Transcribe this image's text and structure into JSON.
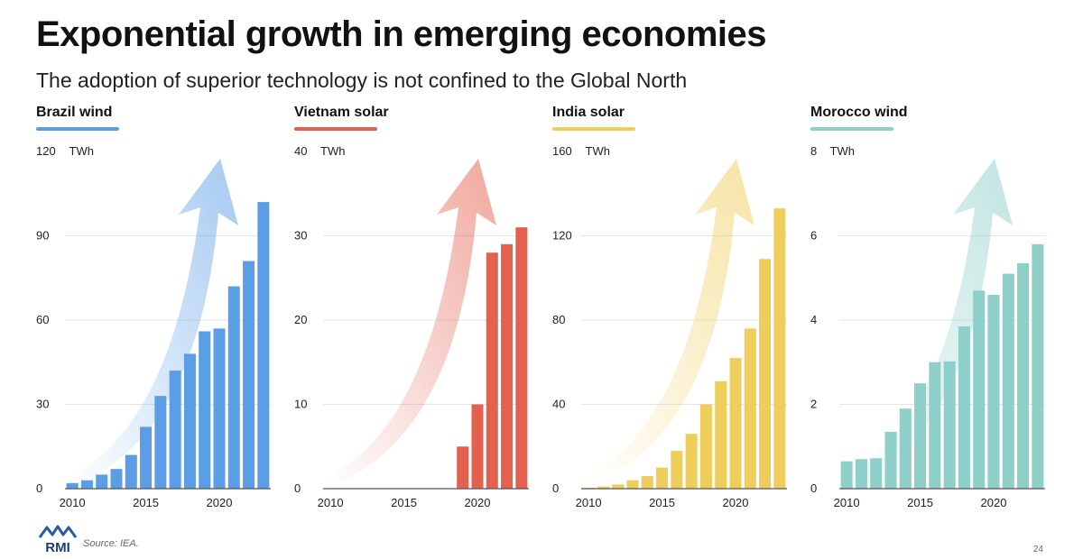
{
  "title": "Exponential growth in emerging economies",
  "subtitle": "The adoption of superior technology is not confined to the Global North",
  "footer": {
    "logo_text": "RMI",
    "source": "Source: IEA.",
    "page_number": "24"
  },
  "chart_data": [
    {
      "type": "bar",
      "title": "Brazil wind",
      "unit": "TWh",
      "color": "#5b9ee6",
      "years": [
        2010,
        2011,
        2012,
        2013,
        2014,
        2015,
        2016,
        2017,
        2018,
        2019,
        2020,
        2021,
        2022,
        2023
      ],
      "values": [
        2,
        3,
        5,
        7,
        12,
        22,
        33,
        42,
        48,
        56,
        57,
        72,
        81,
        102
      ],
      "ylim": [
        0,
        120
      ],
      "yticks": [
        0,
        30,
        60,
        90,
        120
      ],
      "xticks": [
        2010,
        2015,
        2020
      ]
    },
    {
      "type": "bar",
      "title": "Vietnam solar",
      "unit": "TWh",
      "color": "#e4604f",
      "years": [
        2010,
        2011,
        2012,
        2013,
        2014,
        2015,
        2016,
        2017,
        2018,
        2019,
        2020,
        2021,
        2022,
        2023
      ],
      "values": [
        0,
        0,
        0,
        0,
        0,
        0,
        0,
        0,
        0,
        5,
        10,
        28,
        29,
        31
      ],
      "ylim": [
        0,
        40
      ],
      "yticks": [
        0,
        10,
        20,
        30,
        40
      ],
      "xticks": [
        2010,
        2015,
        2020
      ]
    },
    {
      "type": "bar",
      "title": "India solar",
      "unit": "TWh",
      "color": "#efcd5a",
      "years": [
        2010,
        2011,
        2012,
        2013,
        2014,
        2015,
        2016,
        2017,
        2018,
        2019,
        2020,
        2021,
        2022,
        2023
      ],
      "values": [
        0.5,
        1,
        2,
        4,
        6,
        10,
        18,
        26,
        40,
        51,
        62,
        76,
        109,
        133
      ],
      "ylim": [
        0,
        160
      ],
      "yticks": [
        0,
        40,
        80,
        120,
        160
      ],
      "xticks": [
        2010,
        2015,
        2020
      ]
    },
    {
      "type": "bar",
      "title": "Morocco wind",
      "unit": "TWh",
      "color": "#8ecfc9",
      "years": [
        2010,
        2011,
        2012,
        2013,
        2014,
        2015,
        2016,
        2017,
        2018,
        2019,
        2020,
        2021,
        2022,
        2023
      ],
      "values": [
        0.65,
        0.7,
        0.72,
        1.35,
        1.9,
        2.5,
        3,
        3.02,
        3.85,
        4.7,
        4.6,
        5.1,
        5.35,
        5.8
      ],
      "ylim": [
        0,
        8
      ],
      "yticks": [
        0,
        2,
        4,
        6,
        8
      ],
      "xticks": [
        2010,
        2015,
        2020
      ]
    }
  ]
}
